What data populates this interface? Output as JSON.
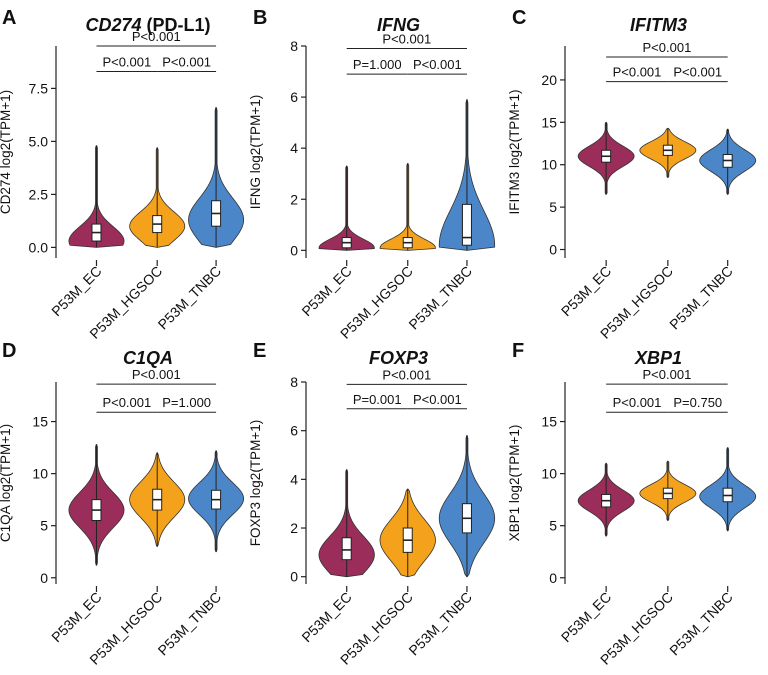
{
  "colors": {
    "EC": "#9b2d5a",
    "HGSOC": "#f4a21c",
    "TNBC": "#4a86c8"
  },
  "chart_data": [
    {
      "type": "violin",
      "panel": "A",
      "title_italic": "CD274",
      "title_rest": " (PD-L1)",
      "ylabel": "CD274 log2(TPM+1)",
      "ylim": [
        -0.5,
        9.5
      ],
      "yticks": [
        0.0,
        2.5,
        5.0,
        7.5
      ],
      "ytick_labels": [
        "0.0",
        "2.5",
        "5.0",
        "7.5"
      ],
      "categories": [
        "P53M_EC",
        "P53M_HGSOC",
        "P53M_TNBC"
      ],
      "groups": [
        {
          "median": 0.7,
          "q1": 0.3,
          "q3": 1.1,
          "min": 0.0,
          "max": 4.8,
          "peak": 0.3
        },
        {
          "median": 1.1,
          "q1": 0.7,
          "q3": 1.5,
          "min": 0.0,
          "max": 4.7,
          "peak": 1.0
        },
        {
          "median": 1.6,
          "q1": 1.0,
          "q3": 2.2,
          "min": 0.0,
          "max": 6.6,
          "peak": 1.3
        }
      ],
      "comparisons": [
        {
          "label": "P<0.001",
          "from": 0,
          "to": 1,
          "y": 8.3
        },
        {
          "label": "P<0.001",
          "from": 1,
          "to": 2,
          "y": 8.3
        },
        {
          "label": "P<0.001",
          "from": 0,
          "to": 2,
          "y": 9.5
        }
      ]
    },
    {
      "type": "violin",
      "panel": "B",
      "title_italic": "IFNG",
      "title_rest": "",
      "ylabel": "IFNG log2(TPM+1)",
      "ylim": [
        -0.3,
        8.0
      ],
      "yticks": [
        0,
        2,
        4,
        6,
        8
      ],
      "ytick_labels": [
        "0",
        "2",
        "4",
        "6",
        "8"
      ],
      "categories": [
        "P53M_EC",
        "P53M_HGSOC",
        "P53M_TNBC"
      ],
      "groups": [
        {
          "median": 0.3,
          "q1": 0.1,
          "q3": 0.5,
          "min": 0.0,
          "max": 3.3,
          "peak": 0.1
        },
        {
          "median": 0.3,
          "q1": 0.1,
          "q3": 0.5,
          "min": 0.0,
          "max": 3.4,
          "peak": 0.1
        },
        {
          "median": 0.5,
          "q1": 0.2,
          "q3": 1.8,
          "min": 0.0,
          "max": 5.9,
          "peak": 0.2
        }
      ],
      "comparisons": [
        {
          "label": "P=1.000",
          "from": 0,
          "to": 1,
          "y": 6.9
        },
        {
          "label": "P<0.001",
          "from": 1,
          "to": 2,
          "y": 6.9
        },
        {
          "label": "P<0.001",
          "from": 0,
          "to": 2,
          "y": 7.9
        }
      ]
    },
    {
      "type": "violin",
      "panel": "C",
      "title_italic": "IFITM3",
      "title_rest": "",
      "ylabel": "IFITM3 log2(TPM+1)",
      "ylim": [
        -1,
        24
      ],
      "yticks": [
        0,
        5,
        10,
        15,
        20
      ],
      "ytick_labels": [
        "0",
        "5",
        "10",
        "15",
        "20"
      ],
      "categories": [
        "P53M_EC",
        "P53M_HGSOC",
        "P53M_TNBC"
      ],
      "groups": [
        {
          "median": 11.0,
          "q1": 10.3,
          "q3": 11.7,
          "min": 6.5,
          "max": 15.0,
          "peak": 11.0
        },
        {
          "median": 11.7,
          "q1": 11.1,
          "q3": 12.3,
          "min": 8.5,
          "max": 14.3,
          "peak": 11.7
        },
        {
          "median": 10.5,
          "q1": 9.7,
          "q3": 11.2,
          "min": 6.5,
          "max": 14.2,
          "peak": 10.5
        }
      ],
      "comparisons": [
        {
          "label": "P<0.001",
          "from": 0,
          "to": 1,
          "y": 19.8
        },
        {
          "label": "P<0.001",
          "from": 1,
          "to": 2,
          "y": 19.8
        },
        {
          "label": "P<0.001",
          "from": 0,
          "to": 2,
          "y": 22.7
        }
      ]
    },
    {
      "type": "violin",
      "panel": "D",
      "title_italic": "C1QA",
      "title_rest": "",
      "ylabel": "C1QA log2(TPM+1)",
      "ylim": [
        -0.6,
        18.8
      ],
      "yticks": [
        0,
        5,
        10,
        15
      ],
      "ytick_labels": [
        "0",
        "5",
        "10",
        "15"
      ],
      "categories": [
        "P53M_EC",
        "P53M_HGSOC",
        "P53M_TNBC"
      ],
      "groups": [
        {
          "median": 6.5,
          "q1": 5.5,
          "q3": 7.5,
          "min": 1.2,
          "max": 12.8,
          "peak": 6.5
        },
        {
          "median": 7.5,
          "q1": 6.5,
          "q3": 8.5,
          "min": 3.0,
          "max": 12.0,
          "peak": 7.5
        },
        {
          "median": 7.5,
          "q1": 6.6,
          "q3": 8.4,
          "min": 2.5,
          "max": 12.2,
          "peak": 7.6
        }
      ],
      "comparisons": [
        {
          "label": "P<0.001",
          "from": 0,
          "to": 1,
          "y": 15.9
        },
        {
          "label": "P=1.000",
          "from": 1,
          "to": 2,
          "y": 15.9
        },
        {
          "label": "P<0.001",
          "from": 0,
          "to": 2,
          "y": 18.6
        }
      ]
    },
    {
      "type": "violin",
      "panel": "E",
      "title_italic": "FOXP3",
      "title_rest": "",
      "ylabel": "FOXP3 log2(TPM+1)",
      "ylim": [
        -0.3,
        8.0
      ],
      "yticks": [
        0,
        2,
        4,
        6,
        8
      ],
      "ytick_labels": [
        "0",
        "2",
        "4",
        "6",
        "8"
      ],
      "categories": [
        "P53M_EC",
        "P53M_HGSOC",
        "P53M_TNBC"
      ],
      "groups": [
        {
          "median": 1.1,
          "q1": 0.7,
          "q3": 1.6,
          "min": 0.0,
          "max": 4.4,
          "peak": 0.9
        },
        {
          "median": 1.5,
          "q1": 1.0,
          "q3": 2.0,
          "min": 0.0,
          "max": 3.6,
          "peak": 1.5
        },
        {
          "median": 2.4,
          "q1": 1.8,
          "q3": 3.0,
          "min": 0.0,
          "max": 5.8,
          "peak": 2.4
        }
      ],
      "comparisons": [
        {
          "label": "P=0.001",
          "from": 0,
          "to": 1,
          "y": 6.9
        },
        {
          "label": "P<0.001",
          "from": 1,
          "to": 2,
          "y": 6.9
        },
        {
          "label": "P<0.001",
          "from": 0,
          "to": 2,
          "y": 7.9
        }
      ]
    },
    {
      "type": "violin",
      "panel": "F",
      "title_italic": "XBP1",
      "title_rest": "",
      "ylabel": "XBP1 log2(TPM+1)",
      "ylim": [
        -0.6,
        18.8
      ],
      "yticks": [
        0,
        5,
        10,
        15
      ],
      "ytick_labels": [
        "0",
        "5",
        "10",
        "15"
      ],
      "categories": [
        "P53M_EC",
        "P53M_HGSOC",
        "P53M_TNBC"
      ],
      "groups": [
        {
          "median": 7.4,
          "q1": 6.8,
          "q3": 8.0,
          "min": 4.0,
          "max": 11.0,
          "peak": 7.4
        },
        {
          "median": 8.1,
          "q1": 7.6,
          "q3": 8.6,
          "min": 5.5,
          "max": 11.2,
          "peak": 8.1
        },
        {
          "median": 7.9,
          "q1": 7.3,
          "q3": 8.6,
          "min": 4.5,
          "max": 12.5,
          "peak": 7.8
        }
      ],
      "comparisons": [
        {
          "label": "P<0.001",
          "from": 0,
          "to": 1,
          "y": 15.9
        },
        {
          "label": "P=0.750",
          "from": 1,
          "to": 2,
          "y": 15.9
        },
        {
          "label": "P<0.001",
          "from": 0,
          "to": 2,
          "y": 18.6
        }
      ]
    }
  ]
}
